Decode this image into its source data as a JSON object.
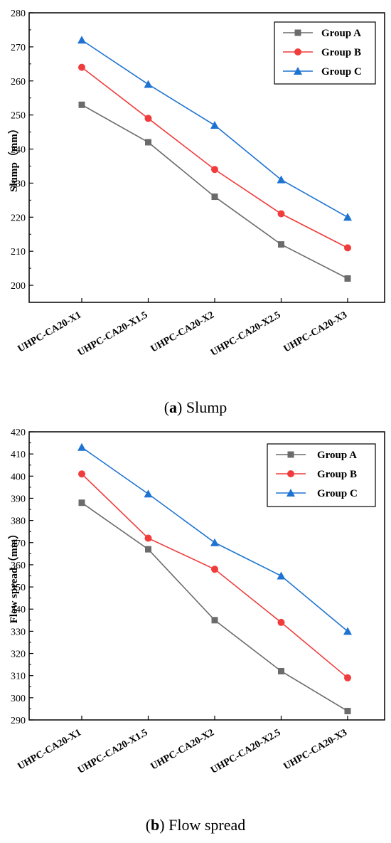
{
  "chart_data": [
    {
      "type": "line",
      "caption": {
        "letter": "a",
        "text": "Slump"
      },
      "ylabel": "Slump（mm）",
      "ylim": [
        195,
        280
      ],
      "yticks": [
        200,
        210,
        220,
        230,
        240,
        250,
        260,
        270,
        280
      ],
      "categories": [
        "UHPC-CA20-X1",
        "UHPC-CA20-X1.5",
        "UHPC-CA20-X2",
        "UHPC-CA20-X2.5",
        "UHPC-CA20-X3"
      ],
      "legend_position": "top-right",
      "series": [
        {
          "name": "Group A",
          "color": "#6b6b6b",
          "marker": "square",
          "values": [
            253,
            242,
            226,
            212,
            202
          ]
        },
        {
          "name": "Group B",
          "color": "#f03c3c",
          "marker": "circle",
          "values": [
            264,
            249,
            234,
            221,
            211
          ]
        },
        {
          "name": "Group C",
          "color": "#1e73d2",
          "marker": "triangle",
          "values": [
            272,
            259,
            247,
            231,
            220
          ]
        }
      ]
    },
    {
      "type": "line",
      "caption": {
        "letter": "b",
        "text": "Flow spread"
      },
      "ylabel": "Flow spread（mm）",
      "ylim": [
        290,
        420
      ],
      "yticks": [
        290,
        300,
        310,
        320,
        330,
        340,
        350,
        360,
        370,
        380,
        390,
        400,
        410,
        420
      ],
      "categories": [
        "UHPC-CA20-X1",
        "UHPC-CA20-X1.5",
        "UHPC-CA20-X2",
        "UHPC-CA20-X2.5",
        "UHPC-CA20-X3"
      ],
      "legend_position": "top-right",
      "series": [
        {
          "name": "Group A",
          "color": "#6b6b6b",
          "marker": "square",
          "values": [
            388,
            367,
            335,
            312,
            294
          ]
        },
        {
          "name": "Group B",
          "color": "#f03c3c",
          "marker": "circle",
          "values": [
            401,
            372,
            358,
            334,
            309
          ]
        },
        {
          "name": "Group C",
          "color": "#1e73d2",
          "marker": "triangle",
          "values": [
            413,
            392,
            370,
            355,
            330
          ]
        }
      ]
    }
  ]
}
